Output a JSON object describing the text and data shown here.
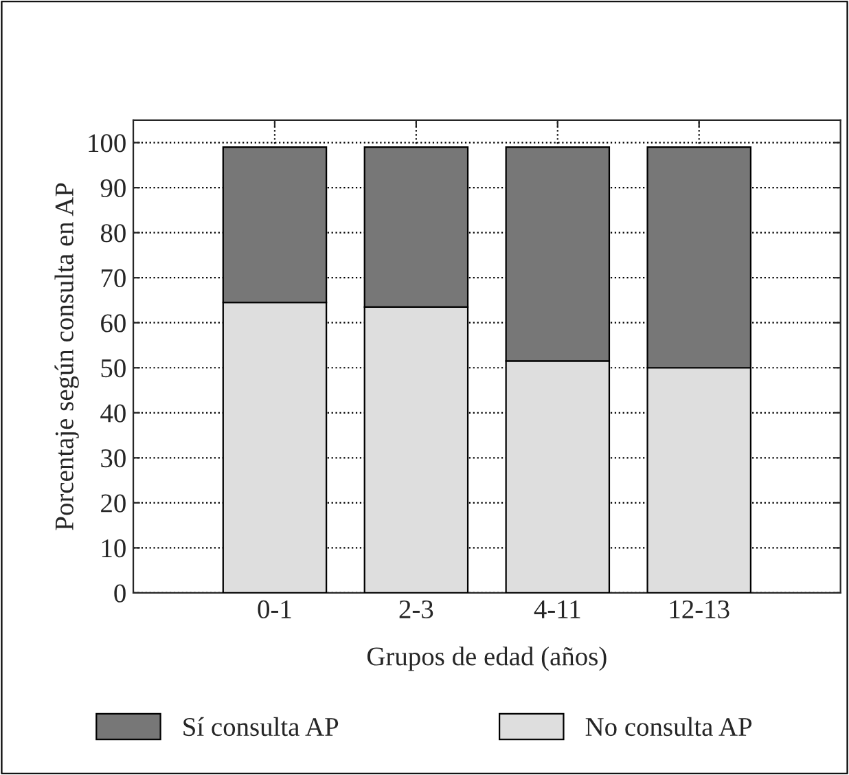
{
  "chart_data": {
    "type": "bar",
    "stacked": true,
    "xlabel": "Grupos de edad (años)",
    "ylabel": "Porcentaje según consulta en AP",
    "categories": [
      "0-1",
      "2-3",
      "4-11",
      "12-13"
    ],
    "series": [
      {
        "name": "No consulta AP",
        "color": "#dedede",
        "values": [
          64.5,
          63.5,
          51.5,
          50
        ]
      },
      {
        "name": "Sí consulta AP",
        "color": "#777777",
        "values": [
          34.5,
          35.5,
          47.5,
          49
        ]
      }
    ],
    "ylim": [
      0,
      105
    ],
    "yticks": [
      0,
      10,
      20,
      30,
      40,
      50,
      60,
      70,
      80,
      90,
      100
    ],
    "grid": true,
    "line_style": "dotted",
    "legend": "bottom"
  }
}
